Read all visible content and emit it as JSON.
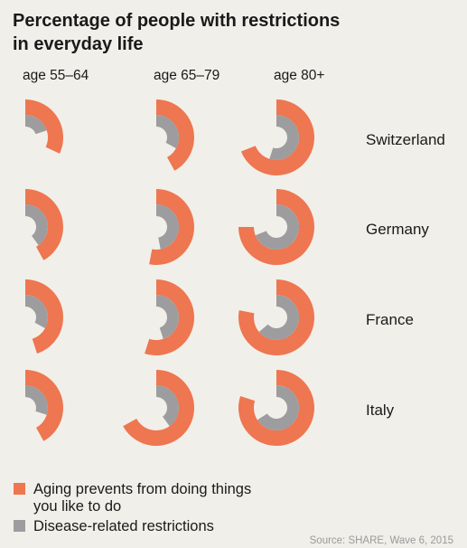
{
  "chart_data": {
    "type": "radial-bar",
    "title_lines": [
      "Percentage of people with restrictions",
      "in everyday life"
    ],
    "categories": [
      "age 55–64",
      "age 65–79",
      "age 80+"
    ],
    "rows": [
      "Switzerland",
      "Germany",
      "France",
      "Italy"
    ],
    "series": [
      {
        "name": "Aging prevents from doing things you like to do",
        "color": "#ee7650",
        "values": [
          [
            32,
            42,
            69
          ],
          [
            42,
            53,
            75
          ],
          [
            45,
            55,
            78
          ],
          [
            42,
            67,
            80
          ]
        ]
      },
      {
        "name": "Disease-related restrictions",
        "color": "#9d9d9f",
        "values": [
          [
            20,
            33,
            55
          ],
          [
            40,
            47,
            69
          ],
          [
            33,
            45,
            64
          ],
          [
            30,
            40,
            66
          ]
        ]
      }
    ],
    "value_unit": "percent of full circle, clockwise from 12 o'clock",
    "legend": [
      {
        "lines": [
          "Aging prevents from doing things",
          "you like to do"
        ],
        "color": "#ee7650"
      },
      {
        "lines": [
          "Disease-related restrictions"
        ],
        "color": "#9d9d9f"
      }
    ],
    "source": "Source: SHARE, Wave 6, 2015"
  },
  "colors": {
    "background": "#f1efe9",
    "aging": "#ee7650",
    "disease": "#9d9d9f",
    "text": "#1a1a1a",
    "source": "#9a9a9a"
  }
}
